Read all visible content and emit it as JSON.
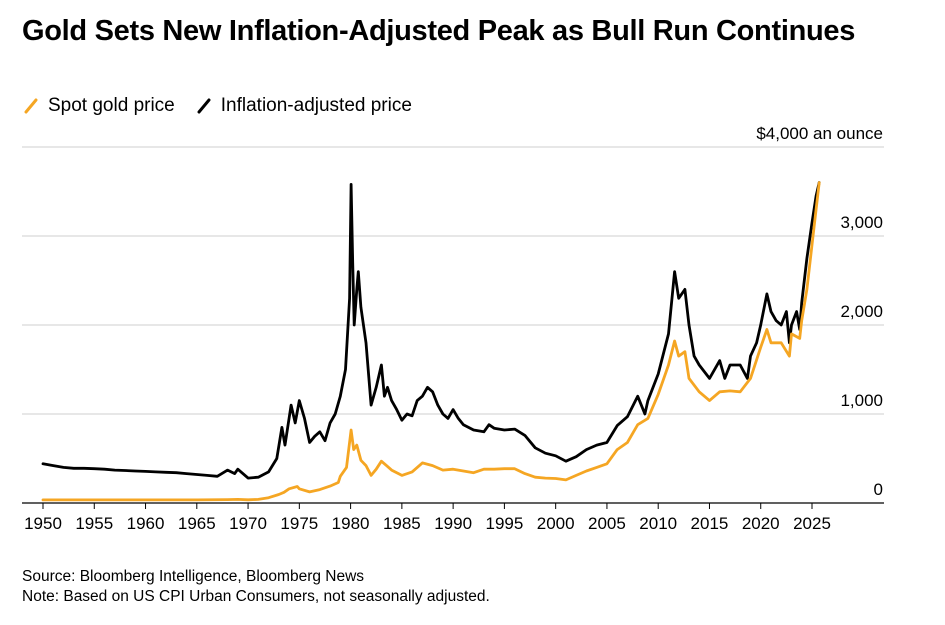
{
  "title": "Gold Sets New Inflation-Adjusted Peak as Bull Run Continues",
  "legend": [
    {
      "label": "Spot gold price",
      "color": "#f5a623"
    },
    {
      "label": "Inflation-adjusted price",
      "color": "#000000"
    }
  ],
  "footer": {
    "source": "Source: Bloomberg Intelligence, Bloomberg News",
    "note": "Note: Based on US CPI Urban Consumers, not seasonally adjusted."
  },
  "chart_data": {
    "type": "line",
    "title": "Gold Sets New Inflation-Adjusted Peak as Bull Run Continues",
    "xlabel": "",
    "ylabel": "",
    "unit_label": "$4,000 an ounce",
    "xlim": [
      1949,
      2029
    ],
    "ylim": [
      0,
      4000
    ],
    "x_ticks": [
      1950,
      1955,
      1960,
      1965,
      1970,
      1975,
      1980,
      1985,
      1990,
      1995,
      2000,
      2005,
      2010,
      2015,
      2020,
      2025
    ],
    "y_ticks": [
      0,
      1000,
      2000,
      3000,
      4000
    ],
    "y_tick_labels": [
      "0",
      "1,000",
      "2,000",
      "3,000",
      "$4,000 an ounce"
    ],
    "grid": true,
    "series": [
      {
        "name": "Inflation-adjusted price",
        "color": "#000000",
        "points": [
          [
            1950,
            440
          ],
          [
            1951,
            420
          ],
          [
            1952,
            400
          ],
          [
            1953,
            390
          ],
          [
            1954,
            390
          ],
          [
            1955,
            385
          ],
          [
            1956,
            380
          ],
          [
            1957,
            370
          ],
          [
            1958,
            365
          ],
          [
            1959,
            360
          ],
          [
            1960,
            355
          ],
          [
            1961,
            350
          ],
          [
            1962,
            345
          ],
          [
            1963,
            340
          ],
          [
            1964,
            330
          ],
          [
            1965,
            320
          ],
          [
            1966,
            310
          ],
          [
            1967,
            300
          ],
          [
            1968,
            370
          ],
          [
            1968.7,
            330
          ],
          [
            1969,
            380
          ],
          [
            1970,
            280
          ],
          [
            1971,
            290
          ],
          [
            1972,
            350
          ],
          [
            1972.8,
            500
          ],
          [
            1973.3,
            850
          ],
          [
            1973.6,
            650
          ],
          [
            1974.2,
            1100
          ],
          [
            1974.6,
            900
          ],
          [
            1975,
            1150
          ],
          [
            1975.5,
            950
          ],
          [
            1976,
            680
          ],
          [
            1976.5,
            750
          ],
          [
            1977,
            800
          ],
          [
            1977.5,
            700
          ],
          [
            1978,
            900
          ],
          [
            1978.5,
            1000
          ],
          [
            1979,
            1200
          ],
          [
            1979.5,
            1500
          ],
          [
            1979.9,
            2300
          ],
          [
            1980.05,
            3580
          ],
          [
            1980.2,
            2700
          ],
          [
            1980.35,
            2000
          ],
          [
            1980.6,
            2400
          ],
          [
            1980.75,
            2600
          ],
          [
            1981,
            2200
          ],
          [
            1981.5,
            1800
          ],
          [
            1982,
            1100
          ],
          [
            1982.5,
            1300
          ],
          [
            1983.0,
            1550
          ],
          [
            1983.3,
            1200
          ],
          [
            1983.6,
            1300
          ],
          [
            1984,
            1150
          ],
          [
            1984.5,
            1050
          ],
          [
            1985,
            930
          ],
          [
            1985.5,
            1000
          ],
          [
            1986,
            980
          ],
          [
            1986.5,
            1150
          ],
          [
            1987,
            1200
          ],
          [
            1987.5,
            1300
          ],
          [
            1988,
            1250
          ],
          [
            1988.5,
            1100
          ],
          [
            1989,
            1000
          ],
          [
            1989.5,
            950
          ],
          [
            1990,
            1050
          ],
          [
            1990.5,
            950
          ],
          [
            1991,
            880
          ],
          [
            1992,
            820
          ],
          [
            1993,
            800
          ],
          [
            1993.5,
            880
          ],
          [
            1994,
            840
          ],
          [
            1995,
            820
          ],
          [
            1996,
            830
          ],
          [
            1997,
            760
          ],
          [
            1998,
            620
          ],
          [
            1999,
            560
          ],
          [
            2000,
            530
          ],
          [
            2001,
            470
          ],
          [
            2002,
            520
          ],
          [
            2003,
            600
          ],
          [
            2004,
            650
          ],
          [
            2005,
            680
          ],
          [
            2006,
            870
          ],
          [
            2007,
            970
          ],
          [
            2008,
            1200
          ],
          [
            2008.7,
            1000
          ],
          [
            2009,
            1150
          ],
          [
            2010,
            1450
          ],
          [
            2011,
            1900
          ],
          [
            2011.6,
            2600
          ],
          [
            2012,
            2300
          ],
          [
            2012.6,
            2400
          ],
          [
            2013,
            2000
          ],
          [
            2013.5,
            1650
          ],
          [
            2014,
            1550
          ],
          [
            2015,
            1400
          ],
          [
            2016,
            1600
          ],
          [
            2016.5,
            1400
          ],
          [
            2017,
            1550
          ],
          [
            2018,
            1550
          ],
          [
            2018.7,
            1400
          ],
          [
            2019,
            1650
          ],
          [
            2019.6,
            1800
          ],
          [
            2020,
            2000
          ],
          [
            2020.6,
            2350
          ],
          [
            2021,
            2150
          ],
          [
            2021.5,
            2050
          ],
          [
            2022,
            2000
          ],
          [
            2022.5,
            2150
          ],
          [
            2022.8,
            1800
          ],
          [
            2023,
            2000
          ],
          [
            2023.5,
            2150
          ],
          [
            2023.8,
            1950
          ],
          [
            2024,
            2250
          ],
          [
            2024.5,
            2750
          ],
          [
            2025,
            3150
          ],
          [
            2025.4,
            3450
          ],
          [
            2025.7,
            3600
          ]
        ]
      },
      {
        "name": "Spot gold price",
        "color": "#f5a623",
        "points": [
          [
            1950,
            35
          ],
          [
            1955,
            35
          ],
          [
            1960,
            35
          ],
          [
            1965,
            35
          ],
          [
            1968,
            38
          ],
          [
            1969,
            41
          ],
          [
            1970,
            36
          ],
          [
            1971,
            40
          ],
          [
            1972,
            60
          ],
          [
            1973,
            95
          ],
          [
            1973.5,
            120
          ],
          [
            1974,
            160
          ],
          [
            1974.8,
            185
          ],
          [
            1975,
            160
          ],
          [
            1976,
            125
          ],
          [
            1977,
            150
          ],
          [
            1978,
            190
          ],
          [
            1978.8,
            230
          ],
          [
            1979,
            300
          ],
          [
            1979.6,
            400
          ],
          [
            1980.05,
            820
          ],
          [
            1980.3,
            600
          ],
          [
            1980.6,
            650
          ],
          [
            1981,
            480
          ],
          [
            1981.5,
            420
          ],
          [
            1982,
            310
          ],
          [
            1982.5,
            380
          ],
          [
            1983,
            470
          ],
          [
            1983.5,
            420
          ],
          [
            1984,
            370
          ],
          [
            1985,
            310
          ],
          [
            1986,
            350
          ],
          [
            1987,
            450
          ],
          [
            1988,
            420
          ],
          [
            1989,
            370
          ],
          [
            1990,
            380
          ],
          [
            1991,
            360
          ],
          [
            1992,
            340
          ],
          [
            1993,
            380
          ],
          [
            1994,
            380
          ],
          [
            1995,
            385
          ],
          [
            1996,
            385
          ],
          [
            1997,
            330
          ],
          [
            1998,
            290
          ],
          [
            1999,
            280
          ],
          [
            2000,
            275
          ],
          [
            2001,
            260
          ],
          [
            2002,
            310
          ],
          [
            2003,
            360
          ],
          [
            2004,
            400
          ],
          [
            2005,
            440
          ],
          [
            2006,
            600
          ],
          [
            2007,
            680
          ],
          [
            2008,
            880
          ],
          [
            2009,
            950
          ],
          [
            2010,
            1220
          ],
          [
            2011,
            1550
          ],
          [
            2011.6,
            1820
          ],
          [
            2012,
            1650
          ],
          [
            2012.6,
            1700
          ],
          [
            2013,
            1400
          ],
          [
            2014,
            1250
          ],
          [
            2015,
            1150
          ],
          [
            2016,
            1250
          ],
          [
            2017,
            1260
          ],
          [
            2018,
            1250
          ],
          [
            2019,
            1400
          ],
          [
            2020,
            1750
          ],
          [
            2020.6,
            1950
          ],
          [
            2021,
            1800
          ],
          [
            2022,
            1800
          ],
          [
            2022.8,
            1650
          ],
          [
            2023,
            1900
          ],
          [
            2023.8,
            1850
          ],
          [
            2024,
            2050
          ],
          [
            2024.5,
            2400
          ],
          [
            2025,
            2900
          ],
          [
            2025.4,
            3300
          ],
          [
            2025.7,
            3600
          ]
        ]
      }
    ]
  }
}
